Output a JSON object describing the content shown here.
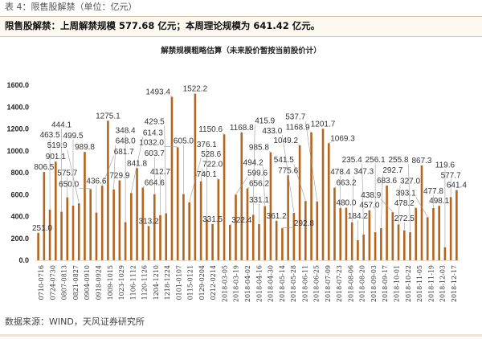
{
  "caption": "表 4：限售股解禁（单位：亿元）",
  "banner": "限售股解禁：上周解禁规模 577.68 亿元；本周理论规模为 641.42 亿元。",
  "footer": "数据来源：WIND，天风证券研究所",
  "colors": {
    "bar": "#b5651d",
    "banner_bg": "#fdf9f1",
    "leader": "#9a9a9a"
  },
  "chart_data": {
    "type": "bar",
    "title": "解禁规模粗略估算（未来股价暂按当前股价计）",
    "xlabel": "",
    "ylabel": "",
    "ylim": [
      0,
      1600
    ],
    "yticks": [
      "0.0",
      "200.0",
      "400.0",
      "600.0",
      "800.0",
      "1000.0",
      "1200.0",
      "1400.0",
      "1600.0"
    ],
    "grid": false,
    "legend": "none",
    "tick_labels": [
      "0710-0716",
      "0724-0730",
      "0807-0813",
      "0821-0827",
      "0904-0910",
      "0918-0924",
      "1009-1015",
      "1023-1029",
      "1106-1112",
      "1120-1126",
      "1204-1210",
      "1218-1224",
      "0101-0107",
      "0115-0121",
      "0129-0204",
      "0212-0214",
      "2018-03-05",
      "2018-03-19",
      "2018-04-02",
      "2018-04-16",
      "2018-04-30",
      "2018-05-14",
      "2018-05-28",
      "2018-06-11",
      "2018-06-25",
      "2018-07-09",
      "2018-07-23",
      "2018-08-06",
      "2018-08-20",
      "2018-09-03",
      "2018-09-17",
      "2018-10-01",
      "2018-10-22",
      "2018-11-05",
      "2018-11-19",
      "2018-12-03",
      "2018-12-17"
    ],
    "values": [
      251.0,
      806.5,
      463.5,
      901.1,
      444.1,
      575.7,
      499.5,
      519.9,
      989.8,
      650.0,
      436.6,
      681.7,
      1275.1,
      648.0,
      729.9,
      348.4,
      614.3,
      841.8,
      664.6,
      313.2,
      603.7,
      412.7,
      429.5,
      1493.4,
      1032.0,
      605.0,
      528.6,
      1522.2,
      722.0,
      376.1,
      331.5,
      740.1,
      1150.6,
      322.4,
      599.6,
      1168.8,
      656.2,
      415.9,
      331.1,
      494.2,
      985.8,
      361.2,
      292.8,
      775.6,
      433.0,
      1049.2,
      541.5,
      1168.9,
      537.7,
      1201.7,
      1069.3,
      663.2,
      478.4,
      480.0,
      347.3,
      184.2,
      235.4,
      457.0,
      256.1,
      292.7,
      683.6,
      438.9,
      327.0,
      272.5,
      255.8,
      478.2,
      867.3,
      393.1,
      477.8,
      498.1,
      119.6,
      577.7,
      641.4
    ],
    "data_labels": [
      "251.0",
      "806.5",
      "463.5",
      "901.1",
      "444.1",
      "575.7",
      "499.5",
      "519.9",
      "989.8",
      "650.0",
      "436.6",
      "681.7",
      "1275.1",
      "648.0",
      "729.9",
      "348.4",
      "614.3",
      "841.8",
      "664.6",
      "313.2",
      "603.7",
      "412.7",
      "429.5",
      "1493.4",
      "1032.0",
      "605.0",
      "528.6",
      "1522.2",
      "722.0",
      "376.1",
      "331.5",
      "740.1",
      "1150.6",
      "322.4",
      "599.6",
      "1168.8",
      "656.2",
      "415.9",
      "331.1",
      "494.2",
      "985.8",
      "361.2",
      "292.8",
      "775.6",
      "433.0",
      "1049.2",
      "541.5",
      "1168.9",
      "537.7",
      "1201.7",
      "1069.3",
      "663.2",
      "478.4",
      "480.0",
      "347.3",
      "184.2",
      "235.4",
      "457.0",
      "256.1",
      "292.7",
      "683.6",
      "438.9",
      "327.0",
      "272.5",
      "255.8",
      "478.2",
      "867.3",
      "393.1",
      "477.8",
      "498.1",
      "119.6",
      "577.7",
      "641.4"
    ]
  }
}
